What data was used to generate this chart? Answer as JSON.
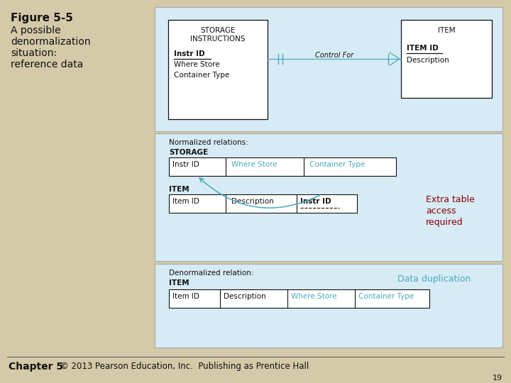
{
  "bg_color": "#D4C9A8",
  "light_blue": "#D6EBF5",
  "white": "#FFFFFF",
  "border_color": "#AAAAAA",
  "teal_text": "#4AAABB",
  "dark_red": "#8B0000",
  "black": "#111111",
  "title_line1": "Figure 5-5",
  "title_line2": "A possible",
  "title_line3": "denormalization",
  "title_line4": "situation:",
  "title_line5": "reference data",
  "footer_left": "Chapter 5",
  "footer_right": "© 2013 Pearson Education, Inc.  Publishing as Prentice Hall",
  "page_num": "19",
  "panel1_label1": "STORAGE",
  "panel1_label2": "INSTRUCTIONS",
  "panel1_field1": "Instr ID",
  "panel1_field2": "Where Store",
  "panel1_field3": "Container Type",
  "panel1_rel": "Control For",
  "panel1_label_r": "ITEM",
  "panel1_field_r1": "ITEM ID",
  "panel1_field_r2": "Description",
  "panel2_header": "Normalized relations:",
  "panel2_table1_label": "STORAGE",
  "panel2_t1_f1": "Instr ID",
  "panel2_t1_f2": "Where Store",
  "panel2_t1_f3": "Container Type",
  "panel2_table2_label": "ITEM",
  "panel2_t2_f1": "Item ID",
  "panel2_t2_f2": "Description",
  "panel2_t2_f3": "Instr ID",
  "panel2_annotation_line1": "Extra table",
  "panel2_annotation_line2": "access",
  "panel2_annotation_line3": "required",
  "panel3_header": "Denormalized relation:",
  "panel3_table_label": "ITEM",
  "panel3_t_f1": "Item ID",
  "panel3_t_f2": "Description",
  "panel3_t_f3": "Where Store",
  "panel3_t_f4": "Container Type",
  "panel3_annotation": "Data duplication"
}
